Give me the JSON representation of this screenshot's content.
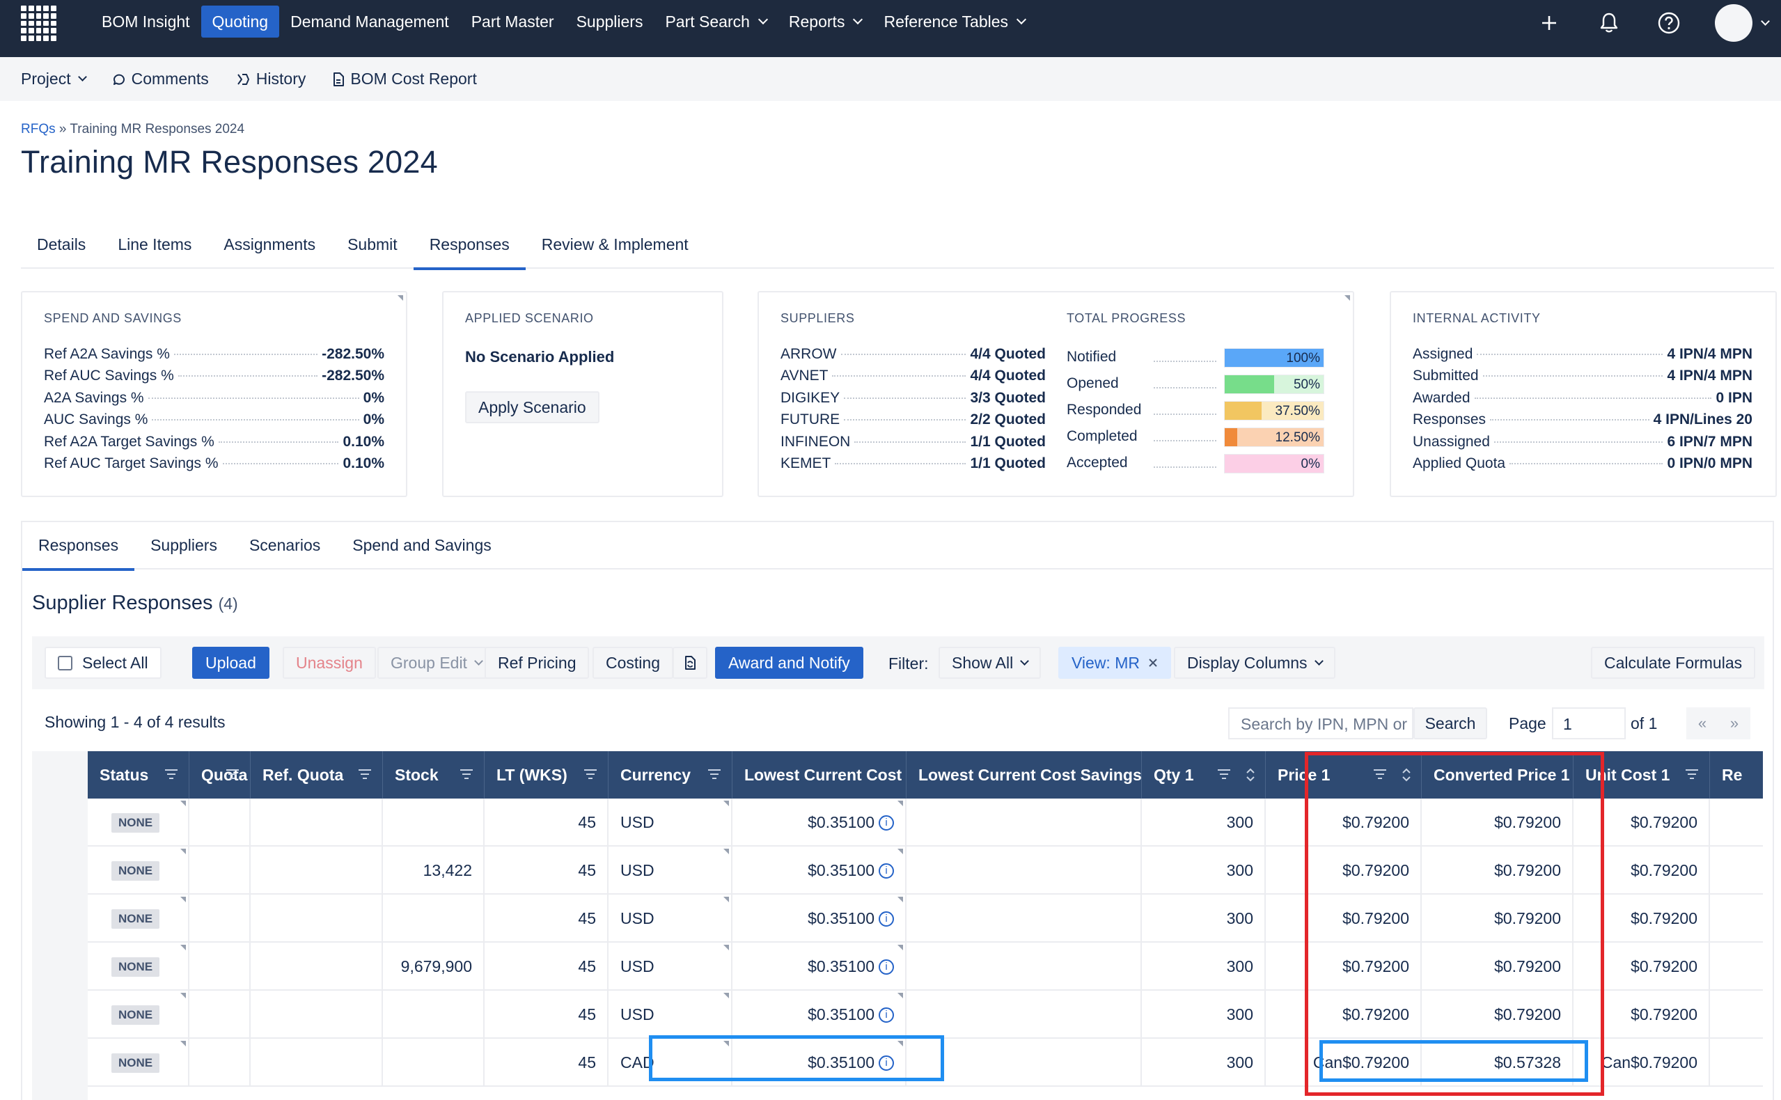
{
  "topnav": {
    "items": [
      {
        "label": "BOM Insight"
      },
      {
        "label": "Quoting",
        "active": true
      },
      {
        "label": "Demand Management"
      },
      {
        "label": "Part Master"
      },
      {
        "label": "Suppliers"
      },
      {
        "label": "Part Search",
        "dropdown": true
      },
      {
        "label": "Reports",
        "dropdown": true
      },
      {
        "label": "Reference Tables",
        "dropdown": true
      }
    ],
    "icons": [
      "apps-grid-icon",
      "plus-icon",
      "bell-icon",
      "help-icon",
      "avatar"
    ]
  },
  "subnav": {
    "project": "Project",
    "comments": "Comments",
    "history": "History",
    "bom_cost_report": "BOM Cost Report"
  },
  "breadcrumb": {
    "link": "RFQs",
    "sep": "»",
    "current": "Training MR Responses 2024"
  },
  "page_title": "Training MR Responses 2024",
  "main_tabs": [
    "Details",
    "Line Items",
    "Assignments",
    "Submit",
    "Responses",
    "Review & Implement"
  ],
  "main_tab_active": "Responses",
  "spend": {
    "title": "SPEND AND SAVINGS",
    "rows": [
      {
        "k": "Ref A2A Savings %",
        "v": "-282.50%"
      },
      {
        "k": "Ref AUC Savings %",
        "v": "-282.50%"
      },
      {
        "k": "A2A Savings %",
        "v": "0%"
      },
      {
        "k": "AUC Savings %",
        "v": "0%"
      },
      {
        "k": "Ref A2A Target Savings %",
        "v": "0.10%"
      },
      {
        "k": "Ref AUC Target Savings %",
        "v": "0.10%"
      }
    ]
  },
  "scenario": {
    "title": "APPLIED SCENARIO",
    "status": "No Scenario Applied",
    "button": "Apply Scenario"
  },
  "suppliers": {
    "title": "SUPPLIERS",
    "rows": [
      {
        "k": "ARROW",
        "v": "4/4 Quoted"
      },
      {
        "k": "AVNET",
        "v": "4/4 Quoted"
      },
      {
        "k": "DIGIKEY",
        "v": "3/3 Quoted"
      },
      {
        "k": "FUTURE",
        "v": "2/2 Quoted"
      },
      {
        "k": "INFINEON",
        "v": "1/1 Quoted"
      },
      {
        "k": "KEMET",
        "v": "1/1 Quoted"
      }
    ]
  },
  "progress": {
    "title": "TOTAL PROGRESS",
    "rows": [
      {
        "k": "Notified",
        "v": "100%",
        "fraction": 1.0,
        "fill": "#5aa7f8",
        "bg": "#cfe5fd"
      },
      {
        "k": "Opened",
        "v": "50%",
        "fraction": 0.5,
        "fill": "#77dd8a",
        "bg": "#d7f5dc"
      },
      {
        "k": "Responded",
        "v": "37.50%",
        "fraction": 0.375,
        "fill": "#f2c661",
        "bg": "#fbeac0"
      },
      {
        "k": "Completed",
        "v": "12.50%",
        "fraction": 0.125,
        "fill": "#f08a3a",
        "bg": "#fbd2b2"
      },
      {
        "k": "Accepted",
        "v": "0%",
        "fraction": 0.0,
        "fill": "#f6a2cf",
        "bg": "#fccfe6"
      }
    ]
  },
  "internal": {
    "title": "INTERNAL ACTIVITY",
    "rows": [
      {
        "k": "Assigned",
        "v": "4 IPN/4 MPN"
      },
      {
        "k": "Submitted",
        "v": "4 IPN/4 MPN"
      },
      {
        "k": "Awarded",
        "v": "0 IPN"
      },
      {
        "k": "Responses",
        "v": "4 IPN/Lines 20"
      },
      {
        "k": "Unassigned",
        "v": "6 IPN/7 MPN"
      },
      {
        "k": "Applied Quota",
        "v": "0 IPN/0 MPN"
      }
    ]
  },
  "inner_tabs": [
    "Responses",
    "Suppliers",
    "Scenarios",
    "Spend and Savings"
  ],
  "inner_tab_active": "Responses",
  "section": {
    "title": "Supplier Responses",
    "count": "(4)"
  },
  "toolbar": {
    "select_all": "Select All",
    "upload": "Upload",
    "unassign": "Unassign",
    "group_edit": "Group Edit",
    "ref_pricing": "Ref Pricing",
    "costing": "Costing",
    "award_notify": "Award and Notify",
    "filter_label": "Filter:",
    "filter_value": "Show All",
    "view": "View: MR",
    "display_columns": "Display Columns",
    "calculate": "Calculate Formulas"
  },
  "results": {
    "showing": "Showing 1 - 4 of 4 results",
    "search_placeholder": "Search by IPN, MPN or",
    "search_button": "Search",
    "page_label": "Page",
    "page_value": "1",
    "of": "of 1",
    "first": "«",
    "last": "»"
  },
  "table": {
    "headers": [
      "Status",
      "Quota",
      "Ref. Quota",
      "Stock",
      "LT (WKS)",
      "Currency",
      "Lowest Current Cost",
      "Lowest Current Cost Savings",
      "Qty 1",
      "Price 1",
      "Converted Price 1",
      "Unit Cost 1",
      "Re"
    ],
    "rows": [
      {
        "status": "NONE",
        "quota": "",
        "ref_quota": "",
        "stock": "",
        "lt": "45",
        "currency": "USD",
        "lcc": "$0.35100",
        "lccs": "",
        "qty": "300",
        "price": "$0.79200",
        "converted": "$0.79200",
        "unit": "$0.79200"
      },
      {
        "status": "NONE",
        "quota": "",
        "ref_quota": "",
        "stock": "13,422",
        "lt": "45",
        "currency": "USD",
        "lcc": "$0.35100",
        "lccs": "",
        "qty": "300",
        "price": "$0.79200",
        "converted": "$0.79200",
        "unit": "$0.79200"
      },
      {
        "status": "NONE",
        "quota": "",
        "ref_quota": "",
        "stock": "",
        "lt": "45",
        "currency": "USD",
        "lcc": "$0.35100",
        "lccs": "",
        "qty": "300",
        "price": "$0.79200",
        "converted": "$0.79200",
        "unit": "$0.79200"
      },
      {
        "status": "NONE",
        "quota": "",
        "ref_quota": "",
        "stock": "9,679,900",
        "lt": "45",
        "currency": "USD",
        "lcc": "$0.35100",
        "lccs": "",
        "qty": "300",
        "price": "$0.79200",
        "converted": "$0.79200",
        "unit": "$0.79200"
      },
      {
        "status": "NONE",
        "quota": "",
        "ref_quota": "",
        "stock": "",
        "lt": "45",
        "currency": "USD",
        "lcc": "$0.35100",
        "lccs": "",
        "qty": "300",
        "price": "$0.79200",
        "converted": "$0.79200",
        "unit": "$0.79200"
      },
      {
        "status": "NONE",
        "quota": "",
        "ref_quota": "",
        "stock": "",
        "lt": "45",
        "currency": "CAD",
        "lcc": "$0.35100",
        "lccs": "",
        "qty": "300",
        "price": "Can$0.79200",
        "converted": "$0.57328",
        "unit": "Can$0.79200"
      }
    ]
  },
  "colors": {
    "accent": "#2563c8",
    "nav_bg": "#1e2a3e",
    "thead_bg": "#2e4a72",
    "highlight_red": "#e3262a",
    "highlight_blue": "#1f8ef1"
  }
}
